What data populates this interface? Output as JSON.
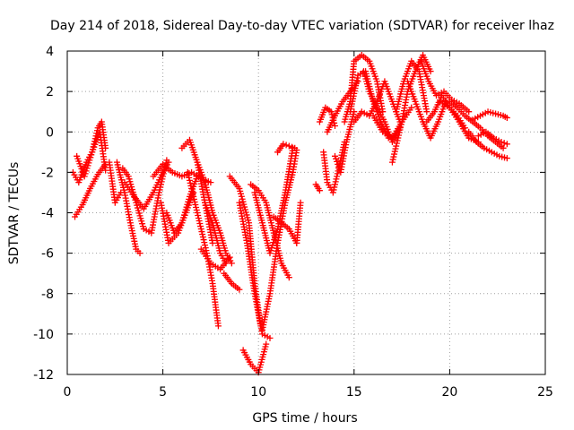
{
  "chart_data": {
    "type": "scatter",
    "title": "Day 214 of 2018, Sidereal Day-to-day VTEC variation (SDTVAR) for receiver lhaz",
    "xlabel": "GPS time / hours",
    "ylabel": "SDTVAR / TECUs",
    "xlim": [
      0,
      25
    ],
    "ylim": [
      -12,
      4
    ],
    "x_ticks": [
      0,
      5,
      10,
      15,
      20,
      25
    ],
    "y_ticks": [
      -12,
      -10,
      -8,
      -6,
      -4,
      -2,
      0,
      2,
      4
    ],
    "grid": true,
    "marker": "+",
    "series": [
      {
        "name": "SDTVAR",
        "color": "#ff0000",
        "tracks": [
          {
            "x": [
              0.3,
              0.6,
              1.0,
              1.3,
              1.6,
              1.8,
              2.0
            ],
            "y": [
              -2.0,
              -2.5,
              -1.5,
              -1.0,
              0.2,
              0.5,
              -0.8
            ]
          },
          {
            "x": [
              0.4,
              0.8,
              1.2,
              1.6,
              2.0
            ],
            "y": [
              -4.2,
              -3.6,
              -2.8,
              -2.1,
              -1.6
            ]
          },
          {
            "x": [
              0.5,
              0.9,
              1.3,
              1.7,
              2.0
            ],
            "y": [
              -1.2,
              -2.2,
              -1.0,
              0.0,
              -1.9
            ]
          },
          {
            "x": [
              2.2,
              2.5,
              2.8
            ],
            "y": [
              -1.5,
              -3.5,
              -3.0
            ]
          },
          {
            "x": [
              2.6,
              3.0,
              3.3,
              3.6,
              3.8
            ],
            "y": [
              -1.5,
              -3.0,
              -4.5,
              -5.8,
              -6.0
            ]
          },
          {
            "x": [
              2.9,
              3.2,
              3.6,
              4.0,
              4.4,
              4.8,
              5.2
            ],
            "y": [
              -1.8,
              -2.2,
              -3.5,
              -4.8,
              -5.0,
              -3.0,
              -1.4
            ]
          },
          {
            "x": [
              3.0,
              3.5,
              4.0,
              4.5,
              5.0,
              5.3
            ],
            "y": [
              -2.5,
              -3.2,
              -3.8,
              -3.0,
              -2.0,
              -1.5
            ]
          },
          {
            "x": [
              4.5,
              5.0,
              5.5,
              6.0,
              6.5,
              7.0,
              7.5
            ],
            "y": [
              -2.2,
              -1.6,
              -2.0,
              -2.2,
              -2.0,
              -2.3,
              -2.5
            ]
          },
          {
            "x": [
              5.2,
              5.6,
              6.0,
              6.4,
              6.8
            ],
            "y": [
              -4.0,
              -5.0,
              -4.5,
              -3.2,
              -2.2
            ]
          },
          {
            "x": [
              4.9,
              5.3,
              5.8,
              6.2,
              6.6
            ],
            "y": [
              -3.5,
              -5.5,
              -5.0,
              -4.0,
              -3.0
            ]
          },
          {
            "x": [
              6.0,
              6.4,
              6.8,
              7.2,
              7.6
            ],
            "y": [
              -0.8,
              -0.4,
              -1.5,
              -3.5,
              -5.5
            ]
          },
          {
            "x": [
              6.3,
              6.8,
              7.3,
              7.6,
              7.9
            ],
            "y": [
              -2.0,
              -4.0,
              -6.0,
              -7.5,
              -9.6
            ]
          },
          {
            "x": [
              6.8,
              7.2,
              7.6,
              8.0,
              8.3,
              8.6
            ],
            "y": [
              -1.5,
              -2.5,
              -4.0,
              -5.0,
              -6.0,
              -6.5
            ]
          },
          {
            "x": [
              7.0,
              7.5,
              8.0,
              8.5
            ],
            "y": [
              -5.8,
              -6.5,
              -6.8,
              -6.2
            ]
          },
          {
            "x": [
              7.2,
              7.6,
              8.0,
              8.3
            ],
            "y": [
              -3.5,
              -4.5,
              -6.0,
              -6.5
            ]
          },
          {
            "x": [
              8.2,
              8.6,
              9.0
            ],
            "y": [
              -7.0,
              -7.5,
              -7.8
            ]
          },
          {
            "x": [
              8.5,
              9.0,
              9.5,
              9.8,
              10.1
            ],
            "y": [
              -2.2,
              -2.8,
              -4.5,
              -7.5,
              -9.5
            ]
          },
          {
            "x": [
              9.0,
              9.4,
              9.8,
              10.2,
              10.6
            ],
            "y": [
              -3.5,
              -5.5,
              -8.0,
              -10.0,
              -10.2
            ]
          },
          {
            "x": [
              9.2,
              9.6,
              10.0,
              10.4
            ],
            "y": [
              -10.8,
              -11.5,
              -11.9,
              -10.5
            ]
          },
          {
            "x": [
              9.6,
              10.0,
              10.4,
              10.8,
              11.2,
              11.6
            ],
            "y": [
              -2.6,
              -2.9,
              -3.5,
              -5.0,
              -6.5,
              -7.2
            ]
          },
          {
            "x": [
              9.8,
              10.2,
              10.6,
              11.0,
              11.4,
              11.8
            ],
            "y": [
              -3.0,
              -4.5,
              -6.0,
              -4.8,
              -3.0,
              -0.8
            ]
          },
          {
            "x": [
              10.2,
              10.6,
              11.0,
              11.4,
              11.8,
              12.0
            ],
            "y": [
              -9.8,
              -8.0,
              -5.5,
              -3.5,
              -2.0,
              -0.9
            ]
          },
          {
            "x": [
              10.8,
              11.2,
              11.6,
              12.0
            ],
            "y": [
              -4.2,
              -4.5,
              -4.8,
              -5.5
            ]
          },
          {
            "x": [
              11.0,
              11.3,
              11.6,
              11.9
            ],
            "y": [
              -1.0,
              -0.6,
              -0.7,
              -0.8
            ]
          },
          {
            "x": [
              12.0,
              12.2
            ],
            "y": [
              -5.5,
              -3.5
            ]
          },
          {
            "x": [
              13.0,
              13.2
            ],
            "y": [
              -2.6,
              -2.9
            ]
          },
          {
            "x": [
              13.2,
              13.5,
              13.8,
              14.0
            ],
            "y": [
              0.5,
              1.2,
              1.0,
              0.3
            ]
          },
          {
            "x": [
              13.4,
              13.6,
              13.9,
              14.2,
              14.5
            ],
            "y": [
              -1.0,
              -2.5,
              -3.0,
              -1.8,
              -0.5
            ]
          },
          {
            "x": [
              13.6,
              14.0,
              14.4,
              14.8,
              15.2
            ],
            "y": [
              0.0,
              0.8,
              1.5,
              2.0,
              2.5
            ]
          },
          {
            "x": [
              14.0,
              14.3,
              14.6,
              15.0
            ],
            "y": [
              -1.2,
              -2.0,
              -0.5,
              1.0
            ]
          },
          {
            "x": [
              14.5,
              14.8,
              15.0,
              15.4,
              15.8,
              16.2,
              16.5
            ],
            "y": [
              0.5,
              1.5,
              3.5,
              3.8,
              3.5,
              2.5,
              1.0
            ]
          },
          {
            "x": [
              14.8,
              15.2,
              15.6,
              16.0,
              16.4,
              16.8,
              17.2
            ],
            "y": [
              1.0,
              2.8,
              3.0,
              1.5,
              0.5,
              -0.3,
              -0.2
            ]
          },
          {
            "x": [
              15.0,
              15.4,
              15.8,
              16.2,
              16.6,
              17.0,
              17.4
            ],
            "y": [
              0.5,
              1.0,
              0.8,
              1.5,
              2.5,
              1.5,
              0.5
            ]
          },
          {
            "x": [
              15.5,
              15.8,
              16.2,
              16.6,
              17.0,
              17.4
            ],
            "y": [
              3.0,
              2.0,
              1.2,
              0.5,
              -0.5,
              0.2
            ]
          },
          {
            "x": [
              16.0,
              16.5,
              17.0,
              17.5,
              18.0
            ],
            "y": [
              0.8,
              0.0,
              -0.3,
              0.5,
              1.2
            ]
          },
          {
            "x": [
              17.2,
              17.6,
              18.0,
              18.4,
              18.8
            ],
            "y": [
              1.0,
              2.5,
              3.5,
              3.0,
              1.0
            ]
          },
          {
            "x": [
              17.0,
              17.5,
              17.8,
              18.2,
              18.6,
              19.0
            ],
            "y": [
              -1.5,
              0.5,
              2.0,
              3.0,
              3.8,
              3.0
            ]
          },
          {
            "x": [
              17.8,
              18.2,
              18.6,
              19.0,
              19.4,
              19.8
            ],
            "y": [
              2.5,
              1.5,
              0.5,
              -0.3,
              0.5,
              1.5
            ]
          },
          {
            "x": [
              18.5,
              18.9,
              19.3,
              19.7,
              20.1,
              20.5,
              21.0
            ],
            "y": [
              3.5,
              2.5,
              1.8,
              2.0,
              1.6,
              1.4,
              1.0
            ]
          },
          {
            "x": [
              18.8,
              19.2,
              19.6,
              20.0,
              20.4,
              20.8
            ],
            "y": [
              0.5,
              1.0,
              1.8,
              1.2,
              0.8,
              0.2
            ]
          },
          {
            "x": [
              19.5,
              20.0,
              20.5,
              21.0,
              21.5
            ],
            "y": [
              1.5,
              1.2,
              0.5,
              -0.3,
              -0.5
            ]
          },
          {
            "x": [
              20.0,
              20.4,
              20.8,
              21.2,
              21.6,
              22.0,
              22.4,
              22.8
            ],
            "y": [
              1.5,
              1.2,
              0.8,
              0.5,
              0.2,
              -0.2,
              -0.5,
              -0.8
            ]
          },
          {
            "x": [
              21.0,
              21.4,
              21.8,
              22.2,
              22.6,
              23.0
            ],
            "y": [
              0.0,
              -0.5,
              -0.8,
              -1.0,
              -1.2,
              -1.3
            ]
          },
          {
            "x": [
              21.2,
              21.6,
              22.0,
              22.4,
              22.8,
              23.0
            ],
            "y": [
              0.6,
              0.8,
              1.0,
              0.9,
              0.8,
              0.7
            ]
          },
          {
            "x": [
              21.5,
              21.9,
              22.3,
              22.7,
              23.0
            ],
            "y": [
              -0.2,
              0.0,
              -0.3,
              -0.5,
              -0.6
            ]
          }
        ]
      }
    ]
  }
}
